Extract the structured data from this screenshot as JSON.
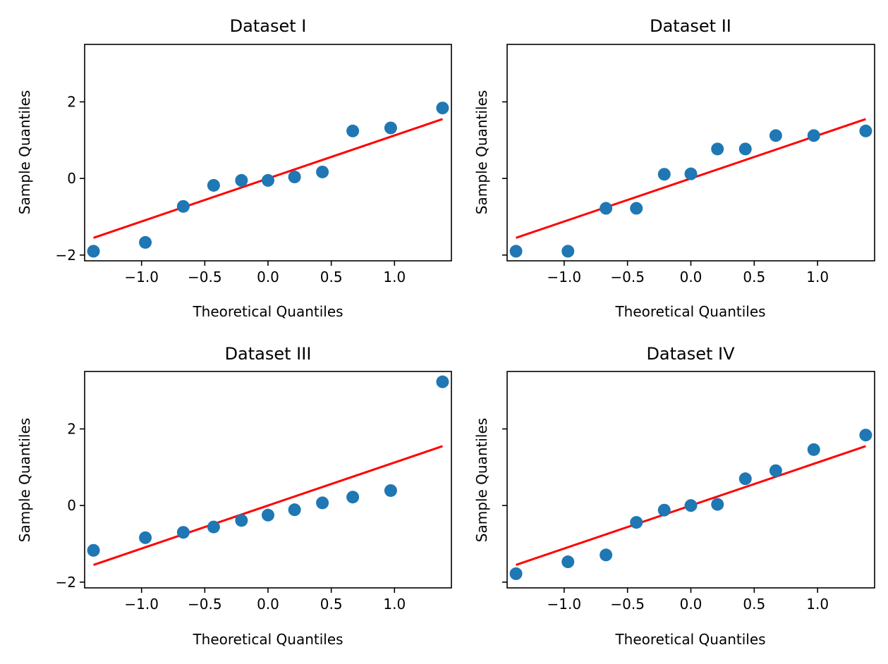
{
  "chart_data": [
    {
      "type": "scatter",
      "title": "Dataset I",
      "xlabel": "Theoretical Quantiles",
      "ylabel": "Sample Quantiles",
      "xlim": [
        -1.45,
        1.45
      ],
      "ylim": [
        -2.15,
        3.5
      ],
      "xticks": [
        -1.0,
        -0.5,
        0.0,
        0.5,
        1.0
      ],
      "xtick_labels": [
        "−1.0",
        "−0.5",
        "0.0",
        "0.5",
        "1.0"
      ],
      "yticks": [
        -2,
        0,
        2
      ],
      "ytick_labels": [
        "−2",
        "0",
        "2"
      ],
      "point_color": "#1f77b4",
      "line_color": "#ff0000",
      "reference_line": {
        "x": [
          -1.38,
          1.38
        ],
        "y": [
          -1.55,
          1.55
        ]
      },
      "points": {
        "x": [
          -1.38,
          -0.97,
          -0.67,
          -0.43,
          -0.21,
          0.0,
          0.21,
          0.43,
          0.67,
          0.97,
          1.38
        ],
        "y": [
          -1.9,
          -1.67,
          -0.73,
          -0.18,
          -0.05,
          -0.05,
          0.04,
          0.17,
          1.24,
          1.32,
          1.84
        ]
      }
    },
    {
      "type": "scatter",
      "title": "Dataset II",
      "xlabel": "Theoretical Quantiles",
      "ylabel": "Sample Quantiles",
      "xlim": [
        -1.45,
        1.45
      ],
      "ylim": [
        -2.15,
        3.5
      ],
      "xticks": [
        -1.0,
        -0.5,
        0.0,
        0.5,
        1.0
      ],
      "xtick_labels": [
        "−1.0",
        "−0.5",
        "0.0",
        "0.5",
        "1.0"
      ],
      "yticks": [
        -2,
        0,
        2
      ],
      "ytick_labels": [
        "",
        "",
        ""
      ],
      "point_color": "#1f77b4",
      "line_color": "#ff0000",
      "reference_line": {
        "x": [
          -1.38,
          1.38
        ],
        "y": [
          -1.55,
          1.55
        ]
      },
      "points": {
        "x": [
          -1.38,
          -0.97,
          -0.67,
          -0.43,
          -0.21,
          0.0,
          0.21,
          0.43,
          0.67,
          0.97,
          1.38
        ],
        "y": [
          -1.9,
          -1.9,
          -0.78,
          -0.78,
          0.11,
          0.12,
          0.77,
          0.77,
          1.12,
          1.12,
          1.24
        ]
      }
    },
    {
      "type": "scatter",
      "title": "Dataset III",
      "xlabel": "Theoretical Quantiles",
      "ylabel": "Sample Quantiles",
      "xlim": [
        -1.45,
        1.45
      ],
      "ylim": [
        -2.15,
        3.5
      ],
      "xticks": [
        -1.0,
        -0.5,
        0.0,
        0.5,
        1.0
      ],
      "xtick_labels": [
        "−1.0",
        "−0.5",
        "0.0",
        "0.5",
        "1.0"
      ],
      "yticks": [
        -2,
        0,
        2
      ],
      "ytick_labels": [
        "−2",
        "0",
        "2"
      ],
      "point_color": "#1f77b4",
      "line_color": "#ff0000",
      "reference_line": {
        "x": [
          -1.38,
          1.38
        ],
        "y": [
          -1.55,
          1.55
        ]
      },
      "points": {
        "x": [
          -1.38,
          -0.97,
          -0.67,
          -0.43,
          -0.21,
          0.0,
          0.21,
          0.43,
          0.67,
          0.97,
          1.38
        ],
        "y": [
          -1.17,
          -0.84,
          -0.7,
          -0.56,
          -0.39,
          -0.25,
          -0.11,
          0.07,
          0.22,
          0.39,
          3.23
        ]
      }
    },
    {
      "type": "scatter",
      "title": "Dataset IV",
      "xlabel": "Theoretical Quantiles",
      "ylabel": "Sample Quantiles",
      "xlim": [
        -1.45,
        1.45
      ],
      "ylim": [
        -2.15,
        3.5
      ],
      "xticks": [
        -1.0,
        -0.5,
        0.0,
        0.5,
        1.0
      ],
      "xtick_labels": [
        "−1.0",
        "−0.5",
        "0.0",
        "0.5",
        "1.0"
      ],
      "yticks": [
        -2,
        0,
        2
      ],
      "ytick_labels": [
        "",
        "",
        ""
      ],
      "point_color": "#1f77b4",
      "line_color": "#ff0000",
      "reference_line": {
        "x": [
          -1.38,
          1.38
        ],
        "y": [
          -1.55,
          1.55
        ]
      },
      "points": {
        "x": [
          -1.38,
          -0.97,
          -0.67,
          -0.43,
          -0.21,
          0.0,
          0.21,
          0.43,
          0.67,
          0.97,
          1.38
        ],
        "y": [
          -1.78,
          -1.47,
          -1.29,
          -0.44,
          -0.12,
          0.0,
          0.03,
          0.7,
          0.91,
          1.46,
          1.84
        ]
      }
    }
  ]
}
